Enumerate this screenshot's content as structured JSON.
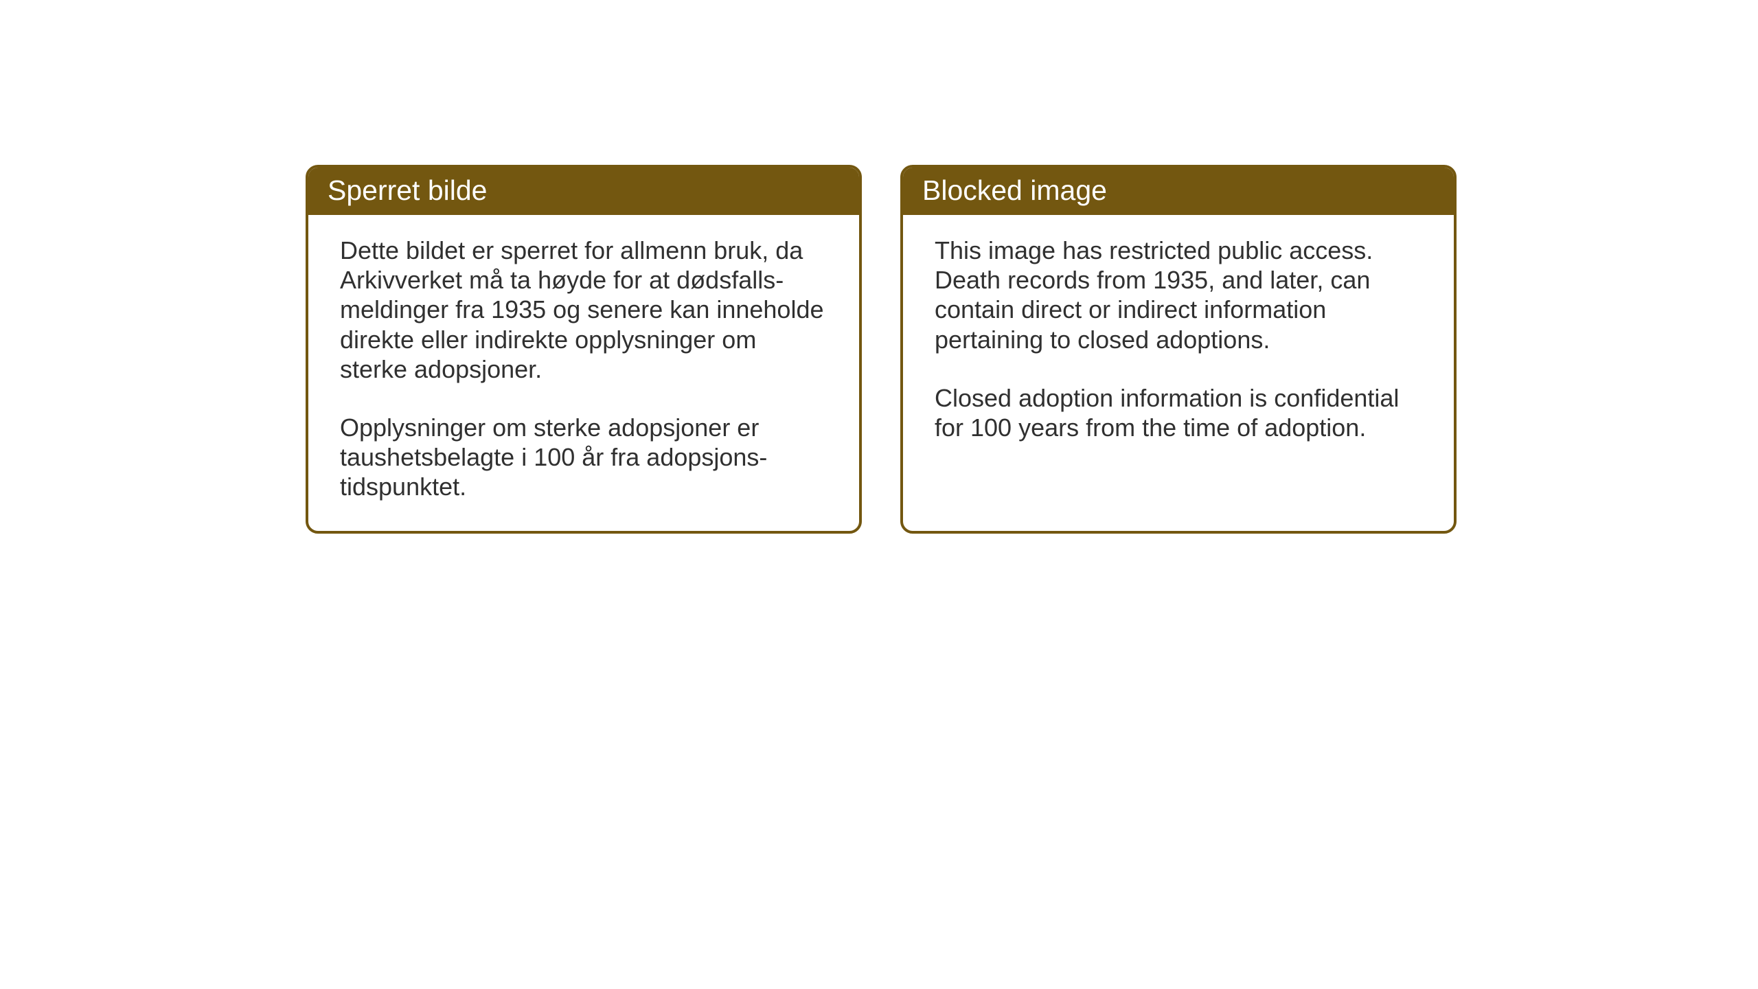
{
  "cards": {
    "norwegian": {
      "title": "Sperret bilde",
      "paragraph1": "Dette bildet er sperret for allmenn bruk, da Arkivverket må ta høyde for at dødsfalls-meldinger fra 1935 og senere kan inneholde direkte eller indirekte opplysninger om sterke adopsjoner.",
      "paragraph2": "Opplysninger om sterke adopsjoner er taushetsbelagte i 100 år fra adopsjons-tidspunktet."
    },
    "english": {
      "title": "Blocked image",
      "paragraph1": "This image has restricted public access. Death records from 1935, and later, can contain direct or indirect information pertaining to closed adoptions.",
      "paragraph2": "Closed adoption information is confidential for 100 years from the time of adoption."
    }
  },
  "styling": {
    "header_background_color": "#735710",
    "header_text_color": "#ffffff",
    "border_color": "#735710",
    "body_background_color": "#ffffff",
    "body_text_color": "#303030",
    "page_background_color": "#ffffff",
    "border_radius": 18,
    "border_width": 4,
    "header_font_size": 41,
    "body_font_size": 36
  }
}
